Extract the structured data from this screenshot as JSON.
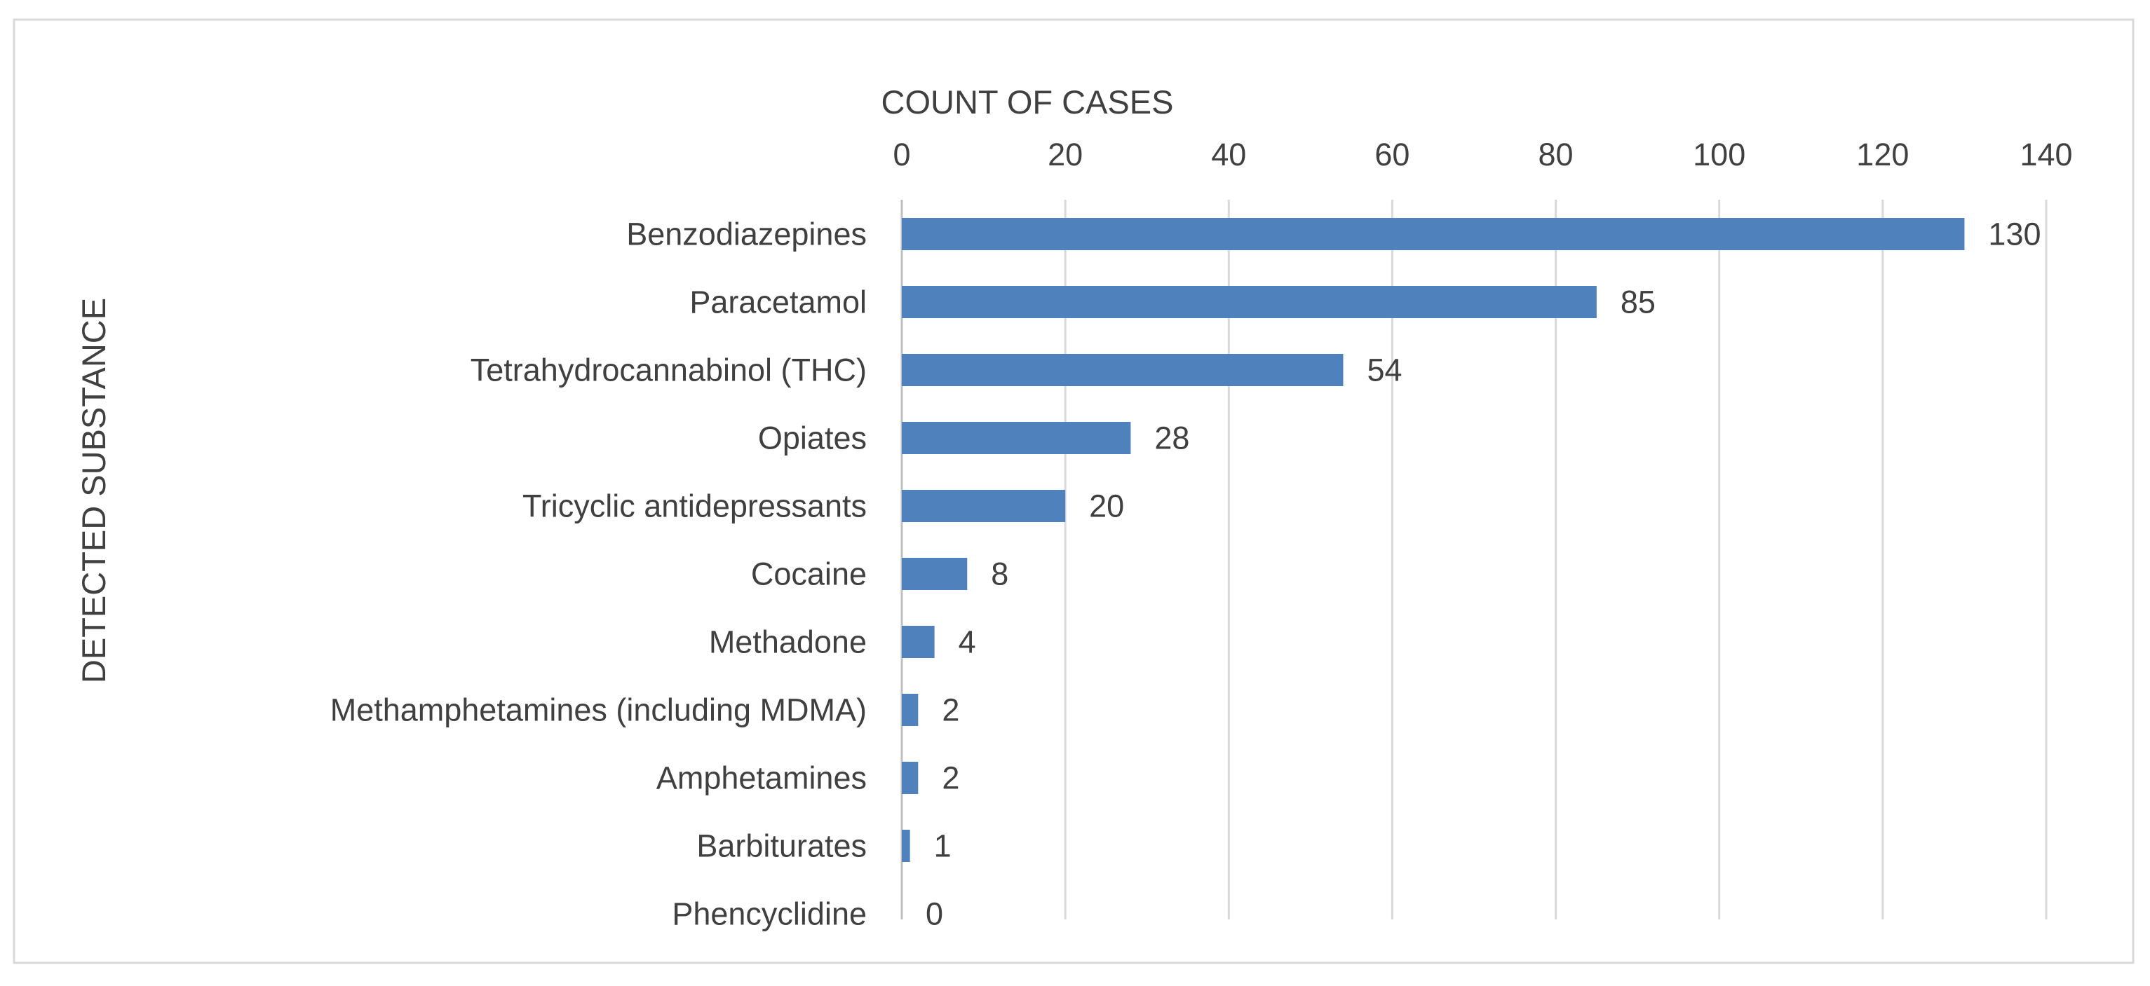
{
  "chart_data": {
    "type": "bar",
    "orientation": "horizontal",
    "xlabel": "COUNT OF CASES",
    "ylabel": "DETECTED SUBSTANCE",
    "x_axis_position": "top",
    "xlim": [
      0,
      140
    ],
    "xticks": [
      0,
      20,
      40,
      60,
      80,
      100,
      120,
      140
    ],
    "grid": "vertical",
    "legend": "none",
    "bar_color": "#4f81bd",
    "categories": [
      "Benzodiazepines",
      "Paracetamol",
      "Tetrahydrocannabinol (THC)",
      "Opiates",
      "Tricyclic antidepressants",
      "Cocaine",
      "Methadone",
      "Methamphetamines (including MDMA)",
      "Amphetamines",
      "Barbiturates",
      "Phencyclidine"
    ],
    "values": [
      130,
      85,
      54,
      28,
      20,
      8,
      4,
      2,
      2,
      1,
      0
    ]
  }
}
